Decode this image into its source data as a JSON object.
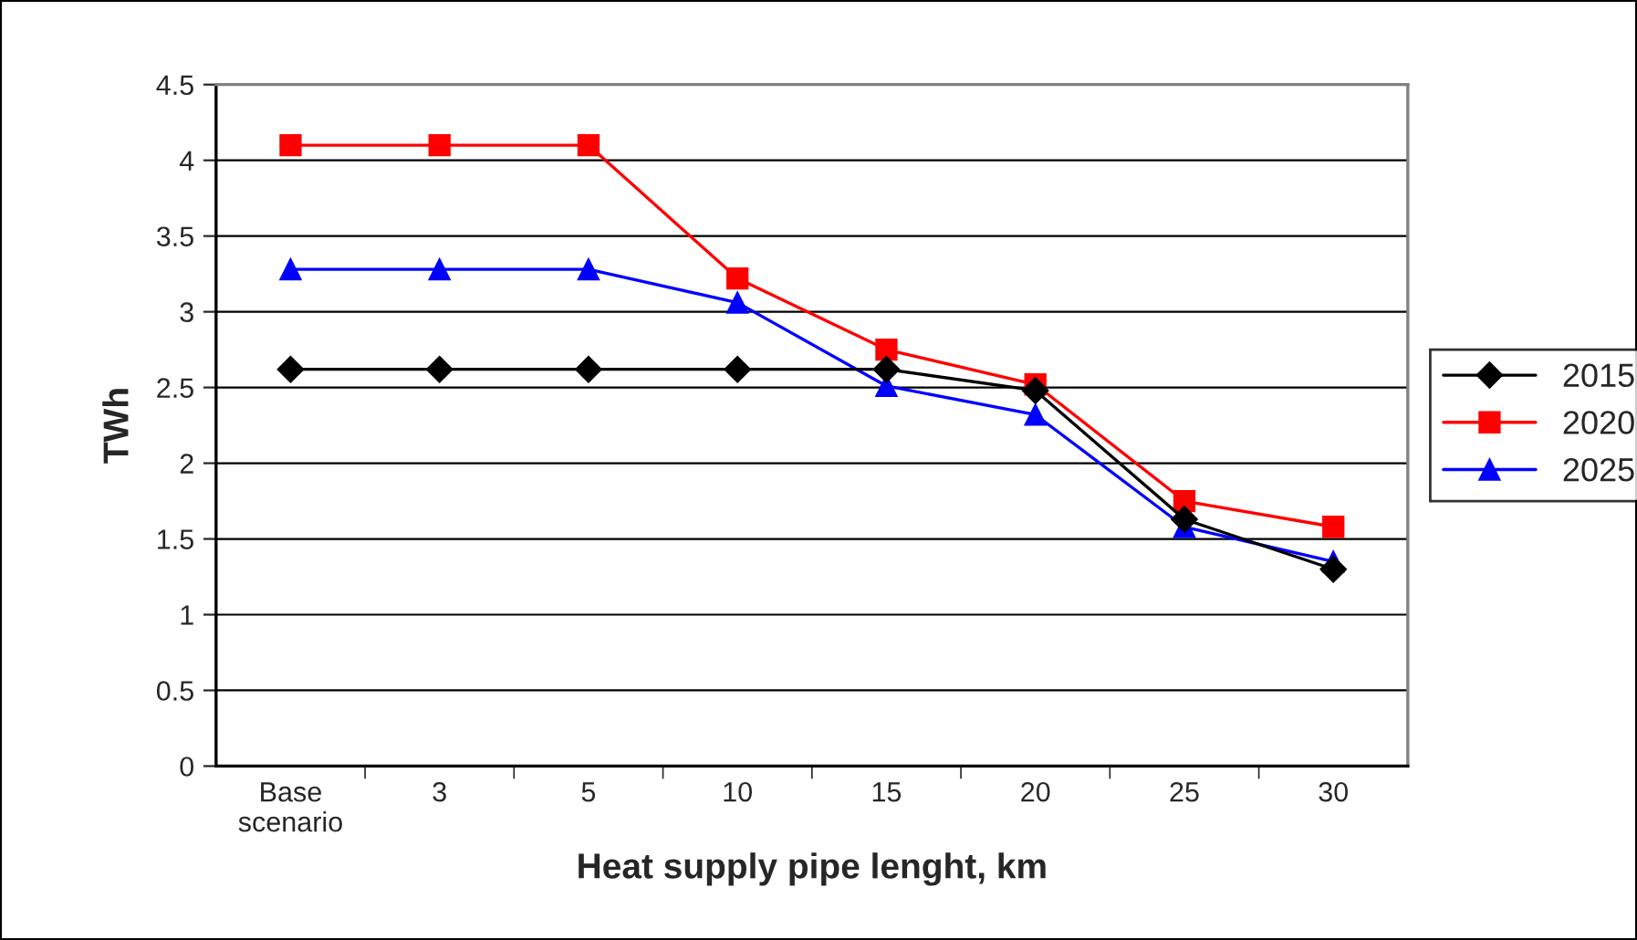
{
  "chart_data": {
    "type": "line",
    "xlabel": "Heat supply pipe lenght, km",
    "ylabel": "TWh",
    "categories": [
      "Base scenario",
      "3",
      "5",
      "10",
      "15",
      "20",
      "25",
      "30"
    ],
    "series": [
      {
        "name": "2015",
        "color": "#000000",
        "marker": "diamond",
        "values": [
          2.62,
          2.62,
          2.62,
          2.62,
          2.62,
          2.48,
          1.63,
          1.3
        ]
      },
      {
        "name": "2020",
        "color": "#ff0000",
        "marker": "square",
        "values": [
          4.1,
          4.1,
          4.1,
          3.22,
          2.75,
          2.52,
          1.75,
          1.58
        ]
      },
      {
        "name": "2025",
        "color": "#0000ff",
        "marker": "triangle",
        "values": [
          3.28,
          3.28,
          3.28,
          3.06,
          2.51,
          2.32,
          1.58,
          1.35
        ]
      }
    ],
    "ylim": [
      0,
      4.5
    ],
    "yticks": [
      0,
      0.5,
      1,
      1.5,
      2,
      2.5,
      3,
      3.5,
      4,
      4.5
    ],
    "grid": "y",
    "legend": "right",
    "line_style": "solid"
  }
}
